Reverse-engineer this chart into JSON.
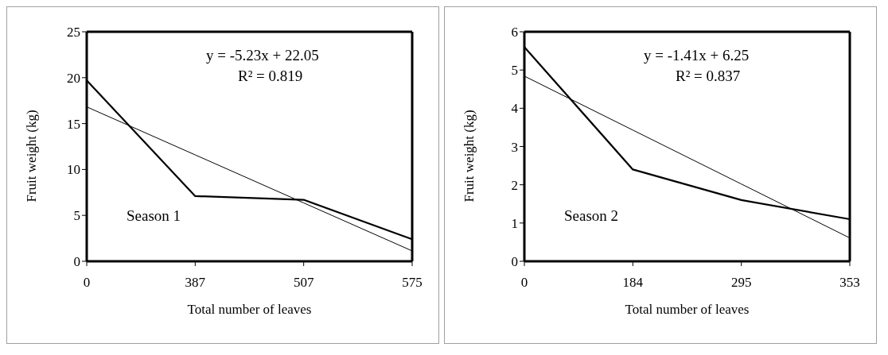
{
  "chart_data": [
    {
      "type": "line",
      "xlabel": "Total number of leaves",
      "ylabel": "Fruit weight (kg)",
      "categories": [
        "0",
        "387",
        "507",
        "575"
      ],
      "ylim": [
        0,
        25
      ],
      "yticks": [
        0,
        5,
        10,
        15,
        20,
        25
      ],
      "marker": "none",
      "grid": false,
      "legend": false,
      "series": [
        {
          "color": "#000000",
          "values": [
            19.7,
            7.1,
            6.7,
            2.4
          ]
        },
        {
          "type": "line",
          "color": "#000000",
          "values": [
            16.82,
            11.59,
            6.36,
            1.13
          ]
        }
      ],
      "annotations": [
        "y = -5.23x + 22.05",
        "R² = 0.819",
        "Season 1"
      ]
    },
    {
      "type": "line",
      "xlabel": "Total number of leaves",
      "ylabel": "Fruit weight (kg)",
      "categories": [
        "0",
        "184",
        "295",
        "353"
      ],
      "ylim": [
        0,
        6
      ],
      "yticks": [
        0,
        1,
        2,
        3,
        4,
        5,
        6
      ],
      "marker": "none",
      "grid": false,
      "legend": false,
      "series": [
        {
          "color": "#000000",
          "values": [
            5.6,
            2.4,
            1.6,
            1.1
          ]
        },
        {
          "type": "line",
          "color": "#000000",
          "values": [
            4.84,
            3.43,
            2.02,
            0.61
          ]
        }
      ],
      "annotations": [
        "y = -1.41x + 6.25",
        "R² = 0.837",
        "Season 2"
      ]
    }
  ]
}
